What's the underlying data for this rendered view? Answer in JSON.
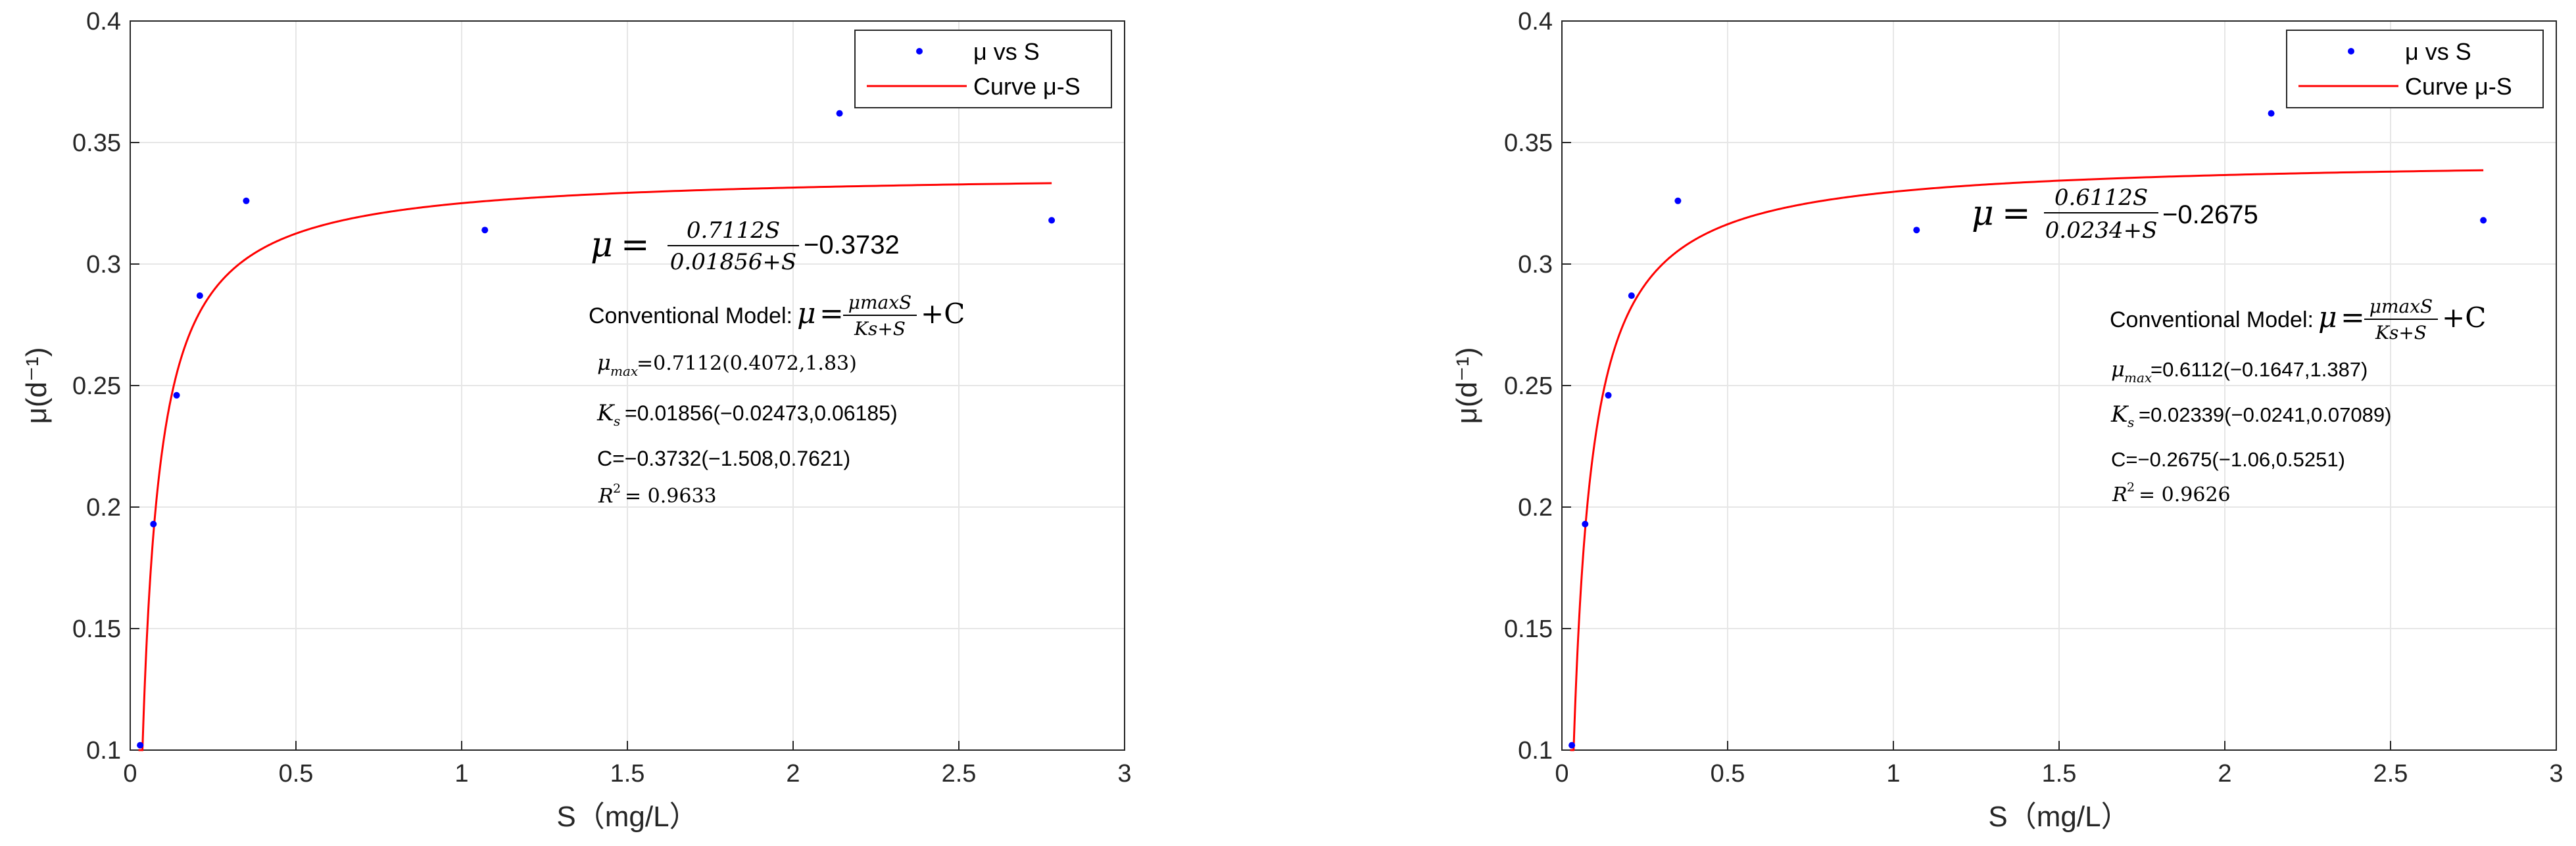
{
  "chart_data": [
    {
      "type": "scatter",
      "xlabel": "S（mg/L）",
      "ylabel": "μ(d⁻¹)",
      "xlim": [
        0,
        3
      ],
      "ylim": [
        0.1,
        0.4
      ],
      "x_ticks": [
        "0",
        "0.5",
        "1",
        "1.5",
        "2",
        "2.5",
        "3"
      ],
      "y_ticks": [
        "0.1",
        "0.15",
        "0.2",
        "0.25",
        "0.3",
        "0.35",
        "0.4"
      ],
      "grid": true,
      "legend_position": "top-right",
      "series": [
        {
          "name": "μ vs S",
          "marker": "dot",
          "color": "#0000ff",
          "x": [
            0.03,
            0.07,
            0.14,
            0.21,
            0.35,
            1.07,
            2.14,
            2.78
          ],
          "y": [
            0.102,
            0.193,
            0.246,
            0.287,
            0.326,
            0.314,
            0.362,
            0.318
          ]
        },
        {
          "name": "Curve μ-S",
          "marker": "line",
          "color": "#ff0000",
          "model": {
            "mu_max": 0.7112,
            "ks": 0.01856,
            "c": -0.3732
          }
        }
      ],
      "annotations": {
        "equation": {
          "mu": "μ",
          "eq": "=",
          "numerator": "0.7112S",
          "denominator": "0.01856+S",
          "tail": "−0.3732"
        },
        "conventional_model": {
          "label": "Conventional Model:",
          "mu": "μ",
          "eq": "=",
          "numerator": "μmaxS",
          "denominator": "Ks+S",
          "tail": "+C"
        },
        "mu_max": {
          "symbol": "μ",
          "sub": "max",
          "text": "=0.7112(0.4072,1.83)"
        },
        "ks": {
          "symbol": "K",
          "sub": "s",
          "text": "=0.01856(−0.02473,0.06185)"
        },
        "c": {
          "text": "C=−0.3732(−1.508,0.7621)"
        },
        "r2": {
          "symbol": "R",
          "sup": "2",
          "text": "= 0.9633"
        }
      }
    },
    {
      "type": "scatter",
      "xlabel": "S（mg/L）",
      "ylabel": "μ(d⁻¹)",
      "xlim": [
        0,
        3
      ],
      "ylim": [
        0.1,
        0.4
      ],
      "x_ticks": [
        "0",
        "0.5",
        "1",
        "1.5",
        "2",
        "2.5",
        "3"
      ],
      "y_ticks": [
        "0.1",
        "0.15",
        "0.2",
        "0.25",
        "0.3",
        "0.35",
        "0.4"
      ],
      "grid": true,
      "legend_position": "top-right",
      "series": [
        {
          "name": "μ vs S",
          "marker": "dot",
          "color": "#0000ff",
          "x": [
            0.03,
            0.07,
            0.14,
            0.21,
            0.35,
            1.07,
            2.14,
            2.78
          ],
          "y": [
            0.102,
            0.193,
            0.246,
            0.287,
            0.326,
            0.314,
            0.362,
            0.318
          ]
        },
        {
          "name": "Curve μ-S",
          "marker": "line",
          "color": "#ff0000",
          "model": {
            "mu_max": 0.6112,
            "ks": 0.0234,
            "c": -0.2675
          }
        }
      ],
      "annotations": {
        "equation": {
          "mu": "μ",
          "eq": "=",
          "numerator": "0.6112S",
          "denominator": "0.0234+S",
          "tail": "−0.2675"
        },
        "conventional_model": {
          "label": "Conventional Model:",
          "mu": "μ",
          "eq": "=",
          "numerator": "μmaxS",
          "denominator": "Ks+S",
          "tail": "+C"
        },
        "mu_max": {
          "symbol": "μ",
          "sub": "max",
          "text": "=0.6112(−0.1647,1.387)"
        },
        "ks": {
          "symbol": "K",
          "sub": "s",
          "text": "=0.02339(−0.0241,0.07089)"
        },
        "c": {
          "text": "C=−0.2675(−1.06,0.5251)"
        },
        "r2": {
          "symbol": "R",
          "sup": "2",
          "text": "= 0.9626"
        }
      }
    }
  ]
}
